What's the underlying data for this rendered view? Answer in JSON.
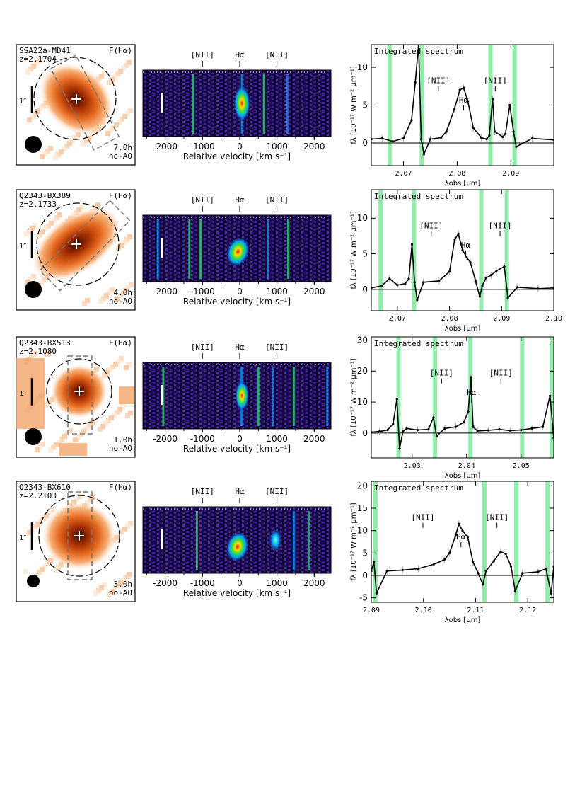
{
  "figure": {
    "objects": [
      {
        "name": "SSA22a-MD41",
        "redshift": "z=2.1704",
        "map_label": "F(Hα)",
        "scale_label": "1″",
        "exposure": "7.0h",
        "mode": "no-AO",
        "pv_labels": [
          "[NII]",
          "Hα",
          "[NII]"
        ],
        "pv_line_velocities": [
          -1000,
          0,
          1000
        ],
        "velocity_ticks": [
          -2000,
          -1000,
          0,
          1000,
          2000
        ],
        "velocity_xlabel": "Relative velocity  [km s⁻¹]",
        "pv_emission_velocities": [
          -1250,
          60,
          650,
          1280
        ],
        "spectrum_title": "Integrated spectrum",
        "spec_labels": [
          "[NII]",
          "Hα",
          "[NII]"
        ],
        "chart_data": {
          "type": "line",
          "title": "Integrated spectrum",
          "xlabel": "λobs  [μm]",
          "ylabel": "fλ [10⁻¹⁷ W m⁻² μm⁻¹]",
          "xlim": [
            2.064,
            2.098
          ],
          "ylim": [
            -3,
            13
          ],
          "xticks": [
            "2.07",
            "2.08",
            "2.09"
          ],
          "xtick_values": [
            2.07,
            2.08,
            2.09
          ],
          "yticks": [
            0,
            5,
            10
          ],
          "line_positions": [
            2.0765,
            2.0812,
            2.0871
          ],
          "sky_bands": [
            2.0674,
            2.0734,
            2.0862,
            2.0907
          ],
          "x": [
            2.064,
            2.066,
            2.068,
            2.07,
            2.0715,
            2.0722,
            2.0728,
            2.0733,
            2.0738,
            2.075,
            2.077,
            2.078,
            2.0795,
            2.0805,
            2.0812,
            2.082,
            2.083,
            2.0845,
            2.0855,
            2.086,
            2.0866,
            2.087,
            2.0885,
            2.089,
            2.0898,
            2.0905,
            2.091,
            2.094,
            2.098
          ],
          "values": [
            0.5,
            0.6,
            0.2,
            0.6,
            3,
            8,
            13,
            0.5,
            -1.5,
            0.5,
            0.7,
            1.5,
            4.5,
            7,
            7.3,
            5.5,
            2,
            0.7,
            0.5,
            1,
            5.8,
            1.5,
            0.8,
            1.2,
            5,
            1.5,
            -0.5,
            0.6,
            0.4
          ]
        }
      },
      {
        "name": "Q2343-BX389",
        "redshift": "z=2.1733",
        "map_label": "F(Hα)",
        "scale_label": "1″",
        "exposure": "4.0h",
        "mode": "no-AO",
        "pv_labels": [
          "[NII]",
          "Hα",
          "[NII]"
        ],
        "pv_line_velocities": [
          -1000,
          0,
          1000
        ],
        "velocity_ticks": [
          -2000,
          -1000,
          0,
          1000,
          2000
        ],
        "velocity_xlabel": "Relative velocity  [km s⁻¹]",
        "pv_emission_velocities": [
          -1350,
          -2200,
          -1050,
          750,
          1300
        ],
        "spectrum_title": "Integrated spectrum",
        "spec_labels": [
          "[NII]",
          "Hα",
          "[NII]"
        ],
        "chart_data": {
          "type": "line",
          "title": "Integrated spectrum",
          "xlabel": "λobs  [μm]",
          "ylabel": "fλ [10⁻¹⁷ W m⁻² μm⁻¹]",
          "xlim": [
            2.065,
            2.1
          ],
          "ylim": [
            -3,
            14
          ],
          "xticks": [
            "2.07",
            "2.08",
            "2.09",
            "2.10"
          ],
          "xtick_values": [
            2.07,
            2.08,
            2.09,
            2.1
          ],
          "yticks": [
            0,
            5,
            10
          ],
          "line_positions": [
            2.0765,
            2.0831,
            2.0897
          ],
          "sky_bands": [
            2.0668,
            2.0732,
            2.0861,
            2.091
          ],
          "x": [
            2.065,
            2.067,
            2.0685,
            2.07,
            2.0715,
            2.0722,
            2.0728,
            2.0733,
            2.0738,
            2.075,
            2.078,
            2.08,
            2.081,
            2.0817,
            2.0825,
            2.0833,
            2.084,
            2.085,
            2.0858,
            2.0863,
            2.087,
            2.088,
            2.089,
            2.0905,
            2.0912,
            2.093,
            2.097,
            2.1
          ],
          "values": [
            0.2,
            0.5,
            1.5,
            0.6,
            0.8,
            1.5,
            6.3,
            1,
            -1.5,
            1,
            1.2,
            2.5,
            7,
            7.8,
            5.5,
            4.5,
            3.8,
            1.2,
            -1,
            0.5,
            1.6,
            2,
            2.6,
            3.2,
            -1.2,
            0.3,
            0.1,
            0.2
          ]
        }
      },
      {
        "name": "Q2343-BX513",
        "redshift": "z=2.1080",
        "map_label": "F(Hα)",
        "scale_label": "1″",
        "exposure": "1.0h",
        "mode": "no-AO",
        "pv_labels": [
          "[NII]",
          "Hα",
          "[NII]"
        ],
        "pv_line_velocities": [
          -1000,
          0,
          1000
        ],
        "velocity_ticks": [
          -2000,
          -1000,
          0,
          1000,
          2000
        ],
        "velocity_xlabel": "Relative velocity  [km s⁻¹]",
        "pv_emission_velocities": [
          -2050,
          50,
          500,
          900,
          1450,
          2350
        ],
        "spectrum_title": "Integrated spectrum",
        "spec_labels": [
          "[NII]",
          "Hα",
          "[NII]"
        ],
        "chart_data": {
          "type": "line",
          "title": "Integrated spectrum",
          "xlabel": "λobs  [μm]",
          "ylabel": "fλ [10⁻¹⁷ W m⁻² μm⁻¹]",
          "xlim": [
            2.0225,
            2.056
          ],
          "ylim": [
            -8,
            31
          ],
          "xticks": [
            "2.03",
            "2.04",
            "2.05"
          ],
          "xtick_values": [
            2.03,
            2.04,
            2.05
          ],
          "yticks": [
            0,
            10,
            20,
            30
          ],
          "line_positions": [
            2.0354,
            2.0409,
            2.0463
          ],
          "sky_bands": [
            2.0275,
            2.0342,
            2.0407,
            2.0502,
            2.0556
          ],
          "x": [
            2.0225,
            2.024,
            2.0255,
            2.0265,
            2.0272,
            2.0277,
            2.0283,
            2.029,
            2.031,
            2.033,
            2.0339,
            2.0345,
            2.036,
            2.038,
            2.0395,
            2.0403,
            2.0408,
            2.0412,
            2.042,
            2.044,
            2.046,
            2.048,
            2.05,
            2.052,
            2.054,
            2.0553,
            2.056
          ],
          "values": [
            0.3,
            0.5,
            1,
            3,
            11,
            -5,
            0.5,
            1.5,
            1,
            1.2,
            5,
            -1,
            1.5,
            2,
            3.5,
            7,
            18,
            2,
            0.7,
            0.9,
            1.2,
            0.8,
            1,
            1.5,
            2,
            12,
            -1.5
          ]
        }
      },
      {
        "name": "Q2343-BX610",
        "redshift": "z=2.2103",
        "map_label": "F(Hα)",
        "scale_label": "1″",
        "exposure": "3.0h",
        "mode": "no-AO",
        "pv_labels": [
          "[NII]",
          "Hα",
          "[NII]"
        ],
        "pv_line_velocities": [
          -1000,
          0,
          1000
        ],
        "velocity_ticks": [
          -2000,
          -1000,
          0,
          1000,
          2000
        ],
        "velocity_xlabel": "Relative velocity  [km s⁻¹]",
        "pv_emission_velocities": [
          -1150,
          1450,
          1850
        ],
        "spectrum_title": "Integrated spectrum",
        "spec_labels": [
          "[NII]",
          "Hα",
          "[NII]"
        ],
        "chart_data": {
          "type": "line",
          "title": "Integrated spectrum",
          "xlabel": "λobs  [μm]",
          "ylabel": "fλ [10⁻¹⁷ W m⁻² μm⁻¹]",
          "xlim": [
            2.09,
            2.125
          ],
          "ylim": [
            -6,
            21
          ],
          "xticks": [
            "2.09",
            "2.10",
            "2.11",
            "2.12"
          ],
          "xtick_values": [
            2.09,
            2.1,
            2.11,
            2.12
          ],
          "yticks": [
            -5,
            0,
            5,
            10,
            15,
            20
          ],
          "line_positions": [
            2.0999,
            2.1072,
            2.1141
          ],
          "sky_bands": [
            2.0908,
            2.1117,
            2.1178,
            2.1238
          ],
          "x": [
            2.09,
            2.0905,
            2.091,
            2.093,
            2.096,
            2.099,
            2.102,
            2.104,
            2.105,
            2.1062,
            2.1068,
            2.1075,
            2.1085,
            2.1095,
            2.1105,
            2.1114,
            2.112,
            2.1135,
            2.1148,
            2.1158,
            2.1168,
            2.1176,
            2.119,
            2.122,
            2.1235,
            2.1245,
            2.125
          ],
          "values": [
            1,
            3,
            -4,
            1,
            1.2,
            1.5,
            2.5,
            3.5,
            5,
            9,
            11.5,
            10,
            8.5,
            3,
            0.5,
            -2,
            1,
            3.2,
            5.3,
            4.8,
            2,
            -3.5,
            0.5,
            0.8,
            1.5,
            -4,
            2
          ]
        }
      }
    ]
  }
}
